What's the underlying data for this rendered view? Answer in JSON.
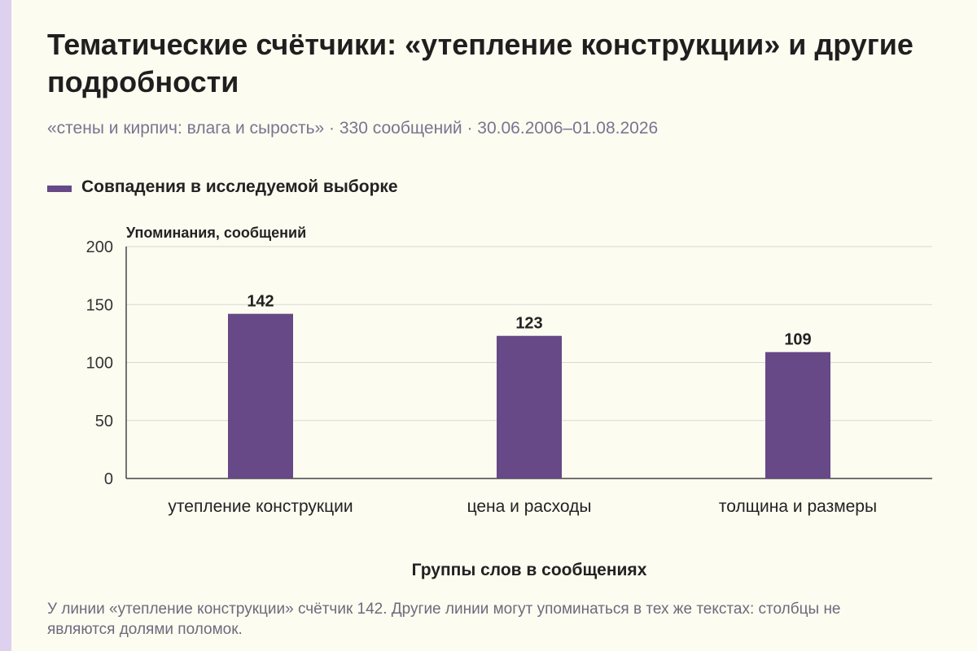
{
  "header": {
    "title": "Тематические счётчики: «утепление конструкции» и другие подробности",
    "subtitle": "«стены и кирпич: влага и сырость» · 330 сообщений · 30.06.2006–01.08.2026"
  },
  "footnote": "У линии «утепление конструкции» счётчик 142. Другие линии могут упоминаться в тех же текстах: столбцы не являются долями поломок.",
  "colors": {
    "bar": "#664986",
    "background": "#fdfcf1",
    "stripe": "#ddd1ef",
    "grid": "#d9d7d2"
  },
  "chart_data": {
    "type": "bar",
    "ylabel": "Упоминания, сообщений",
    "xlabel": "Группы слов в сообщениях",
    "categories": [
      "утепление конструкции",
      "цена и расходы",
      "толщина и размеры"
    ],
    "series": [
      {
        "name": "Совпадения в исследуемой выборке",
        "values": [
          142,
          123,
          109
        ]
      }
    ],
    "ylim": [
      0,
      200
    ],
    "yticks": [
      0,
      50,
      100,
      150,
      200
    ],
    "grid": true,
    "legend": "top-left",
    "data_labels": true
  }
}
